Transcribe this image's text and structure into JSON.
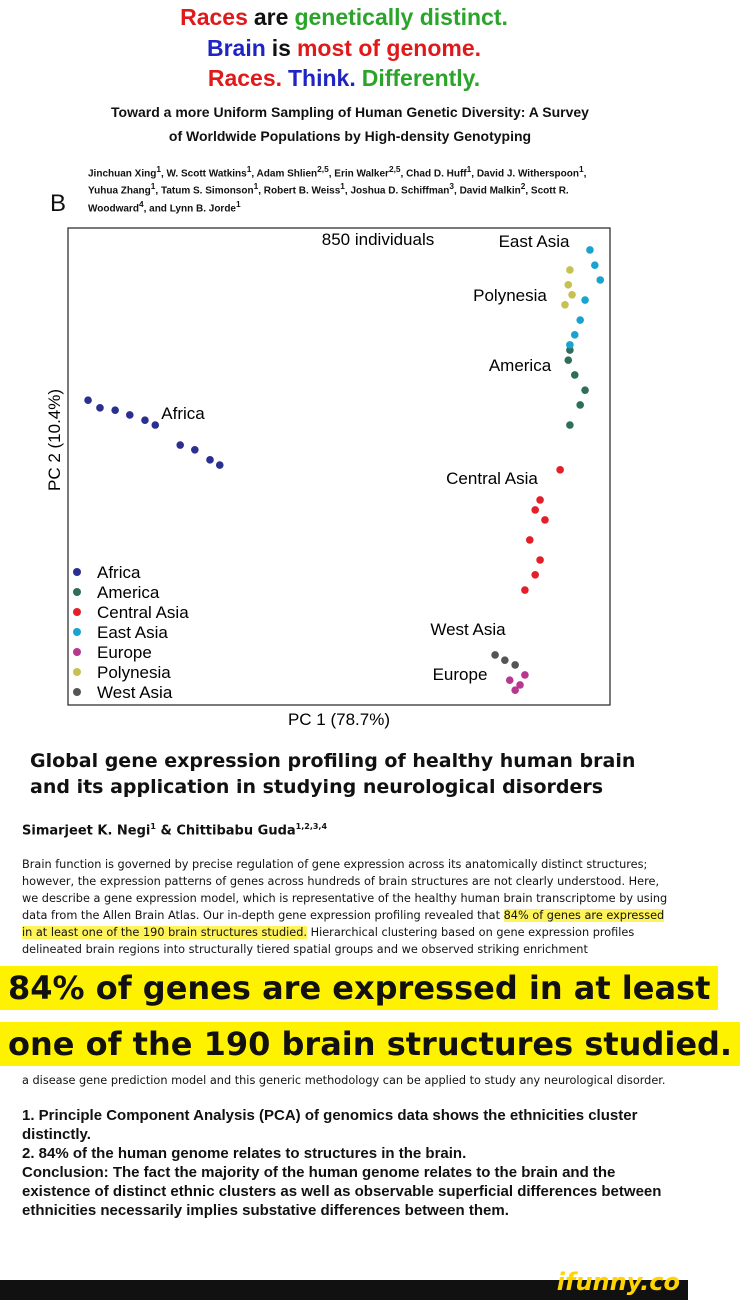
{
  "header": {
    "lines": [
      [
        "Races",
        "are",
        "genetically distinct."
      ],
      [
        "Brain",
        "is",
        "most of genome."
      ],
      [
        "Races.",
        "Think.",
        "Differently."
      ]
    ]
  },
  "paper1": {
    "title": "Toward a more Uniform Sampling of Human Genetic Diversity: A Survey of Worldwide Populations by High-density Genotyping",
    "authors": [
      {
        "name": "Jinchuan Xing",
        "sup": "1"
      },
      {
        "name": ", W. Scott Watkins",
        "sup": "1"
      },
      {
        "name": ", Adam Shlien",
        "sup": "2,5"
      },
      {
        "name": ", Erin Walker",
        "sup": "2,5"
      },
      {
        "name": ", Chad D. Huff",
        "sup": "1"
      },
      {
        "name": ", David J. Witherspoon",
        "sup": "1"
      },
      {
        "name": ", Yuhua Zhang",
        "sup": "1"
      },
      {
        "name": ", Tatum S. Simonson",
        "sup": "1"
      },
      {
        "name": ", Robert B. Weiss",
        "sup": "1"
      },
      {
        "name": ", Joshua D. Schiffman",
        "sup": "3"
      },
      {
        "name": ", David Malkin",
        "sup": "2"
      },
      {
        "name": ", Scott R. Woodward",
        "sup": "4"
      },
      {
        "name": ", and Lynn B. Jorde",
        "sup": "1"
      }
    ],
    "panel_label": "B"
  },
  "chart_data": {
    "type": "scatter",
    "x_label": "PC 1 (78.7%)",
    "y_label": "PC 2 (10.4%)",
    "xlim": [
      0,
      100
    ],
    "ylim": [
      0,
      100
    ],
    "legend": "bottom-left",
    "annotations": [
      "850 individuals",
      "East Asia",
      "Polynesia",
      "America",
      "Africa",
      "Central Asia",
      "West Asia",
      "Europe"
    ],
    "series": [
      {
        "name": "Africa",
        "color": "#2b2f8f",
        "x": [
          3.7,
          5.9,
          8.7,
          11.4,
          14.2,
          16.1,
          20.7,
          23.4,
          26.2,
          28.0
        ],
        "values": [
          63.9,
          62.3,
          61.8,
          60.8,
          59.7,
          58.7,
          54.5,
          53.5,
          51.4,
          50.3
        ]
      },
      {
        "name": "America",
        "color": "#2e6e5b",
        "x": [
          92.6,
          92.3,
          93.5,
          95.4,
          94.5,
          92.6
        ],
        "values": [
          74.4,
          72.3,
          69.2,
          66.0,
          62.9,
          58.7
        ]
      },
      {
        "name": "Central Asia",
        "color": "#e3202a",
        "x": [
          90.8,
          87.1,
          86.2,
          88.0,
          85.2,
          87.1,
          86.2,
          84.3
        ],
        "values": [
          49.3,
          43.0,
          40.9,
          38.8,
          34.6,
          30.4,
          27.3,
          24.1
        ]
      },
      {
        "name": "East Asia",
        "color": "#1aa3d0",
        "x": [
          96.3,
          97.2,
          98.2,
          95.4,
          94.5,
          93.5,
          92.6
        ],
        "values": [
          95.4,
          92.2,
          89.1,
          84.9,
          80.7,
          77.6,
          75.5
        ]
      },
      {
        "name": "Europe",
        "color": "#b8388f",
        "x": [
          81.5,
          83.4,
          82.5,
          84.3
        ],
        "values": [
          5.2,
          4.2,
          3.1,
          6.3
        ]
      },
      {
        "name": "Polynesia",
        "color": "#c8c050",
        "x": [
          92.6,
          92.3,
          93.0,
          91.7
        ],
        "values": [
          91.2,
          88.1,
          86.0,
          83.9
        ]
      },
      {
        "name": "West Asia",
        "color": "#555555",
        "x": [
          78.8,
          80.6,
          82.5
        ],
        "values": [
          10.5,
          9.4,
          8.4
        ]
      }
    ]
  },
  "paper2": {
    "title": "Global gene expression profiling of healthy human brain and its application in studying neurological disorders",
    "authors": [
      {
        "name": "Simarjeet K. Negi",
        "sup": "1"
      },
      {
        "name": " & Chittibabu Guda",
        "sup": "1,2,3,4"
      }
    ],
    "abstract_before": "Brain function is governed by precise regulation of gene expression across its anatomically distinct structures; however, the expression patterns of genes across hundreds of brain structures are not clearly understood. Here, we describe a gene expression model, which is representative of the healthy human brain transcriptome by using data from the Allen Brain Atlas. Our in-depth gene expression profiling revealed that",
    "abstract_highlight": "84% of genes are expressed in at least one of the 190 brain structures studied.",
    "abstract_after": "Hierarchical clustering based on gene expression profiles delineated brain regions into structurally tiered spatial groups and we observed striking enrichment",
    "abstract_end": "a disease gene prediction model and this generic methodology can be applied to study any neurological disorder."
  },
  "caption": [
    "84% of genes are expressed in at least",
    "one of the 190 brain structures studied."
  ],
  "conclusion": [
    "1. Principle Component Analysis (PCA) of genomics data shows the ethnicities cluster distinctly.",
    "2. 84% of the human genome relates to structures in the brain.",
    "Conclusion: The fact the majority of the human genome relates to the brain and the existence of distinct ethnic clusters as well as observable superficial differences between ethnicities necessarily implies substative differences between them."
  ],
  "footer": {
    "watermark": "ifunny.co"
  }
}
